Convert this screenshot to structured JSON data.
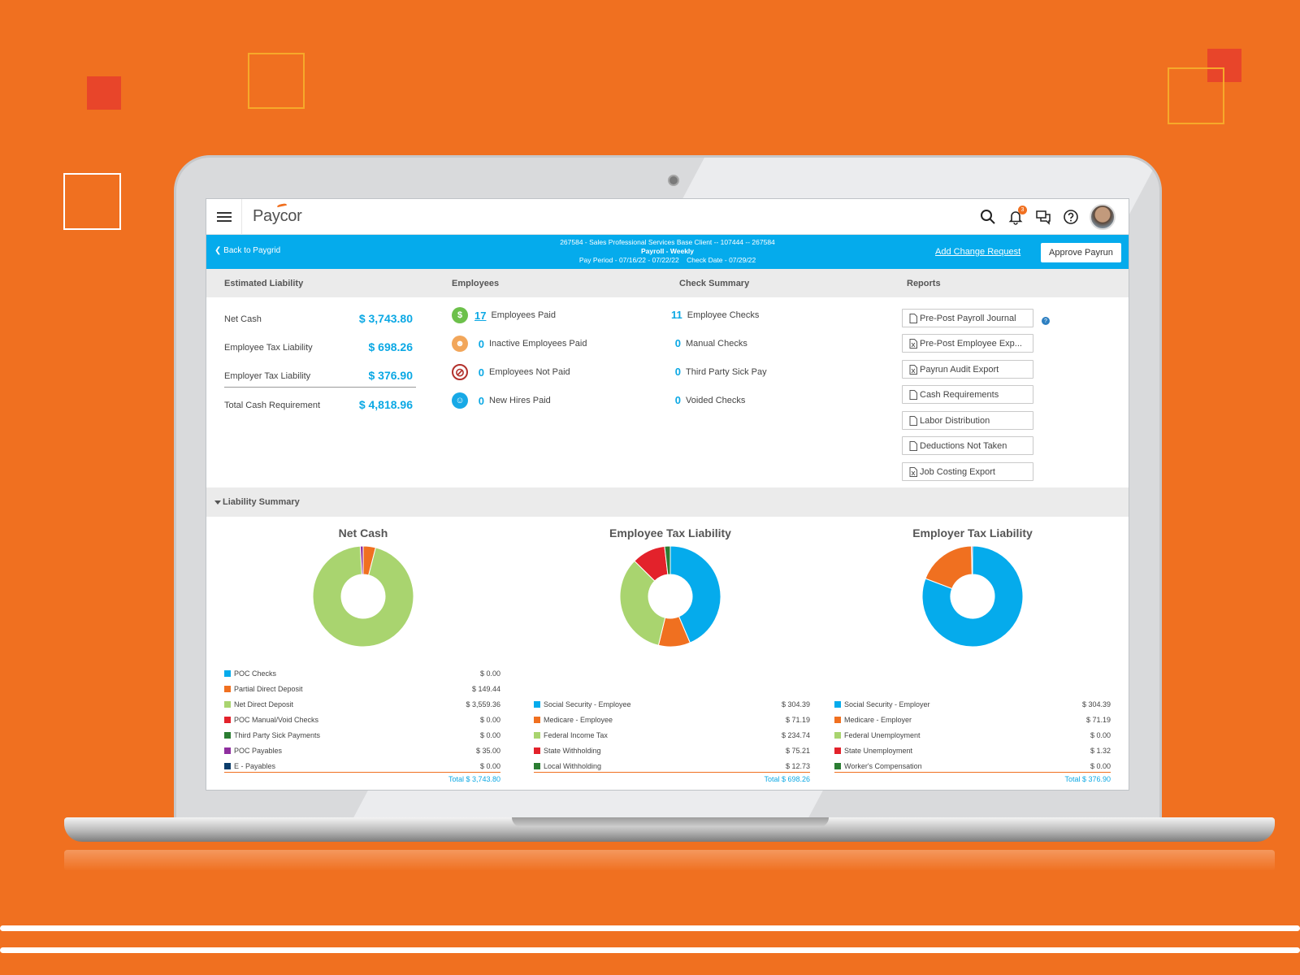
{
  "app": {
    "logo_text": "Paycor",
    "notification_count": "3"
  },
  "header": {
    "back_label": "Back to Paygrid",
    "client_line": "267584 - Sales Professional Services Base Client -- 107444 -- 267584",
    "payroll_line": "Payroll - Weekly",
    "period_line": "Pay Period - 07/16/22 - 07/22/22    Check Date - 07/29/22",
    "add_change_label": "Add Change Request",
    "approve_label": "Approve Payrun"
  },
  "sections": {
    "estimated_liability": "Estimated Liability",
    "employees": "Employees",
    "check_summary": "Check Summary",
    "reports": "Reports"
  },
  "liability": [
    {
      "label": "Net Cash",
      "value": "$ 3,743.80"
    },
    {
      "label": "Employee Tax Liability",
      "value": "$ 698.26"
    },
    {
      "label": "Employer Tax Liability",
      "value": "$ 376.90"
    },
    {
      "label": "Total Cash Requirement",
      "value": "$ 4,818.96"
    }
  ],
  "employees": [
    {
      "count": "17",
      "label": "Employees Paid",
      "icon": "dollar-icon",
      "color": "#6cc04a"
    },
    {
      "count": "0",
      "label": "Inactive Employees Paid",
      "icon": "inactive-user-icon",
      "color": "#f2a65a"
    },
    {
      "count": "0",
      "label": "Employees Not Paid",
      "icon": "no-entry-icon",
      "color": "#b3312c"
    },
    {
      "count": "0",
      "label": "New Hires Paid",
      "icon": "new-hire-icon",
      "color": "#18a9e6"
    }
  ],
  "checks": [
    {
      "count": "11",
      "label": "Employee Checks"
    },
    {
      "count": "0",
      "label": "Manual Checks"
    },
    {
      "count": "0",
      "label": "Third Party Sick Pay"
    },
    {
      "count": "0",
      "label": "Voided Checks"
    }
  ],
  "reports": [
    "Pre-Post Payroll Journal",
    "Pre-Post Employee Exp...",
    "Payrun Audit Export",
    "Cash Requirements",
    "Labor Distribution",
    "Deductions Not Taken",
    "Job Costing Export"
  ],
  "liability_summary_label": "Liability Summary",
  "colors": {
    "blue": "#05abec",
    "orange": "#f07020",
    "light_green": "#a9d46f",
    "red": "#e3222b",
    "dark_green": "#2b7d32",
    "purple": "#8f2f9f",
    "navy": "#0b3d6b"
  },
  "chart_data": [
    {
      "type": "pie",
      "title": "Net Cash",
      "categories": [
        "POC Checks",
        "Partial Direct Deposit",
        "Net Direct Deposit",
        "POC Manual/Void Checks",
        "Third Party Sick Payments",
        "POC Payables",
        "E - Payables"
      ],
      "values": [
        0.0,
        149.44,
        3559.36,
        0.0,
        0.0,
        35.0,
        0.0
      ],
      "labels": [
        "$ 0.00",
        "$ 149.44",
        "$ 3,559.36",
        "$ 0.00",
        "$ 0.00",
        "$ 35.00",
        "$ 0.00"
      ],
      "colors": [
        "#05abec",
        "#f07020",
        "#a9d46f",
        "#e3222b",
        "#2b7d32",
        "#8f2f9f",
        "#0b3d6b"
      ],
      "total": "Total $ 3,743.80"
    },
    {
      "type": "pie",
      "title": "Employee Tax Liability",
      "categories": [
        "Social Security - Employee",
        "Medicare - Employee",
        "Federal Income Tax",
        "State Withholding",
        "Local Withholding"
      ],
      "values": [
        304.39,
        71.19,
        234.74,
        75.21,
        12.73
      ],
      "labels": [
        "$ 304.39",
        "$ 71.19",
        "$ 234.74",
        "$ 75.21",
        "$ 12.73"
      ],
      "colors": [
        "#05abec",
        "#f07020",
        "#a9d46f",
        "#e3222b",
        "#2b7d32"
      ],
      "total": "Total $ 698.26"
    },
    {
      "type": "pie",
      "title": "Employer Tax Liability",
      "categories": [
        "Social Security - Employer",
        "Medicare - Employer",
        "Federal Unemployment",
        "State Unemployment",
        "Worker's Compensation"
      ],
      "values": [
        304.39,
        71.19,
        0.0,
        1.32,
        0.0
      ],
      "labels": [
        "$ 304.39",
        "$ 71.19",
        "$ 0.00",
        "$ 1.32",
        "$ 0.00"
      ],
      "colors": [
        "#05abec",
        "#f07020",
        "#a9d46f",
        "#e3222b",
        "#2b7d32"
      ],
      "total": "Total $ 376.90"
    }
  ]
}
